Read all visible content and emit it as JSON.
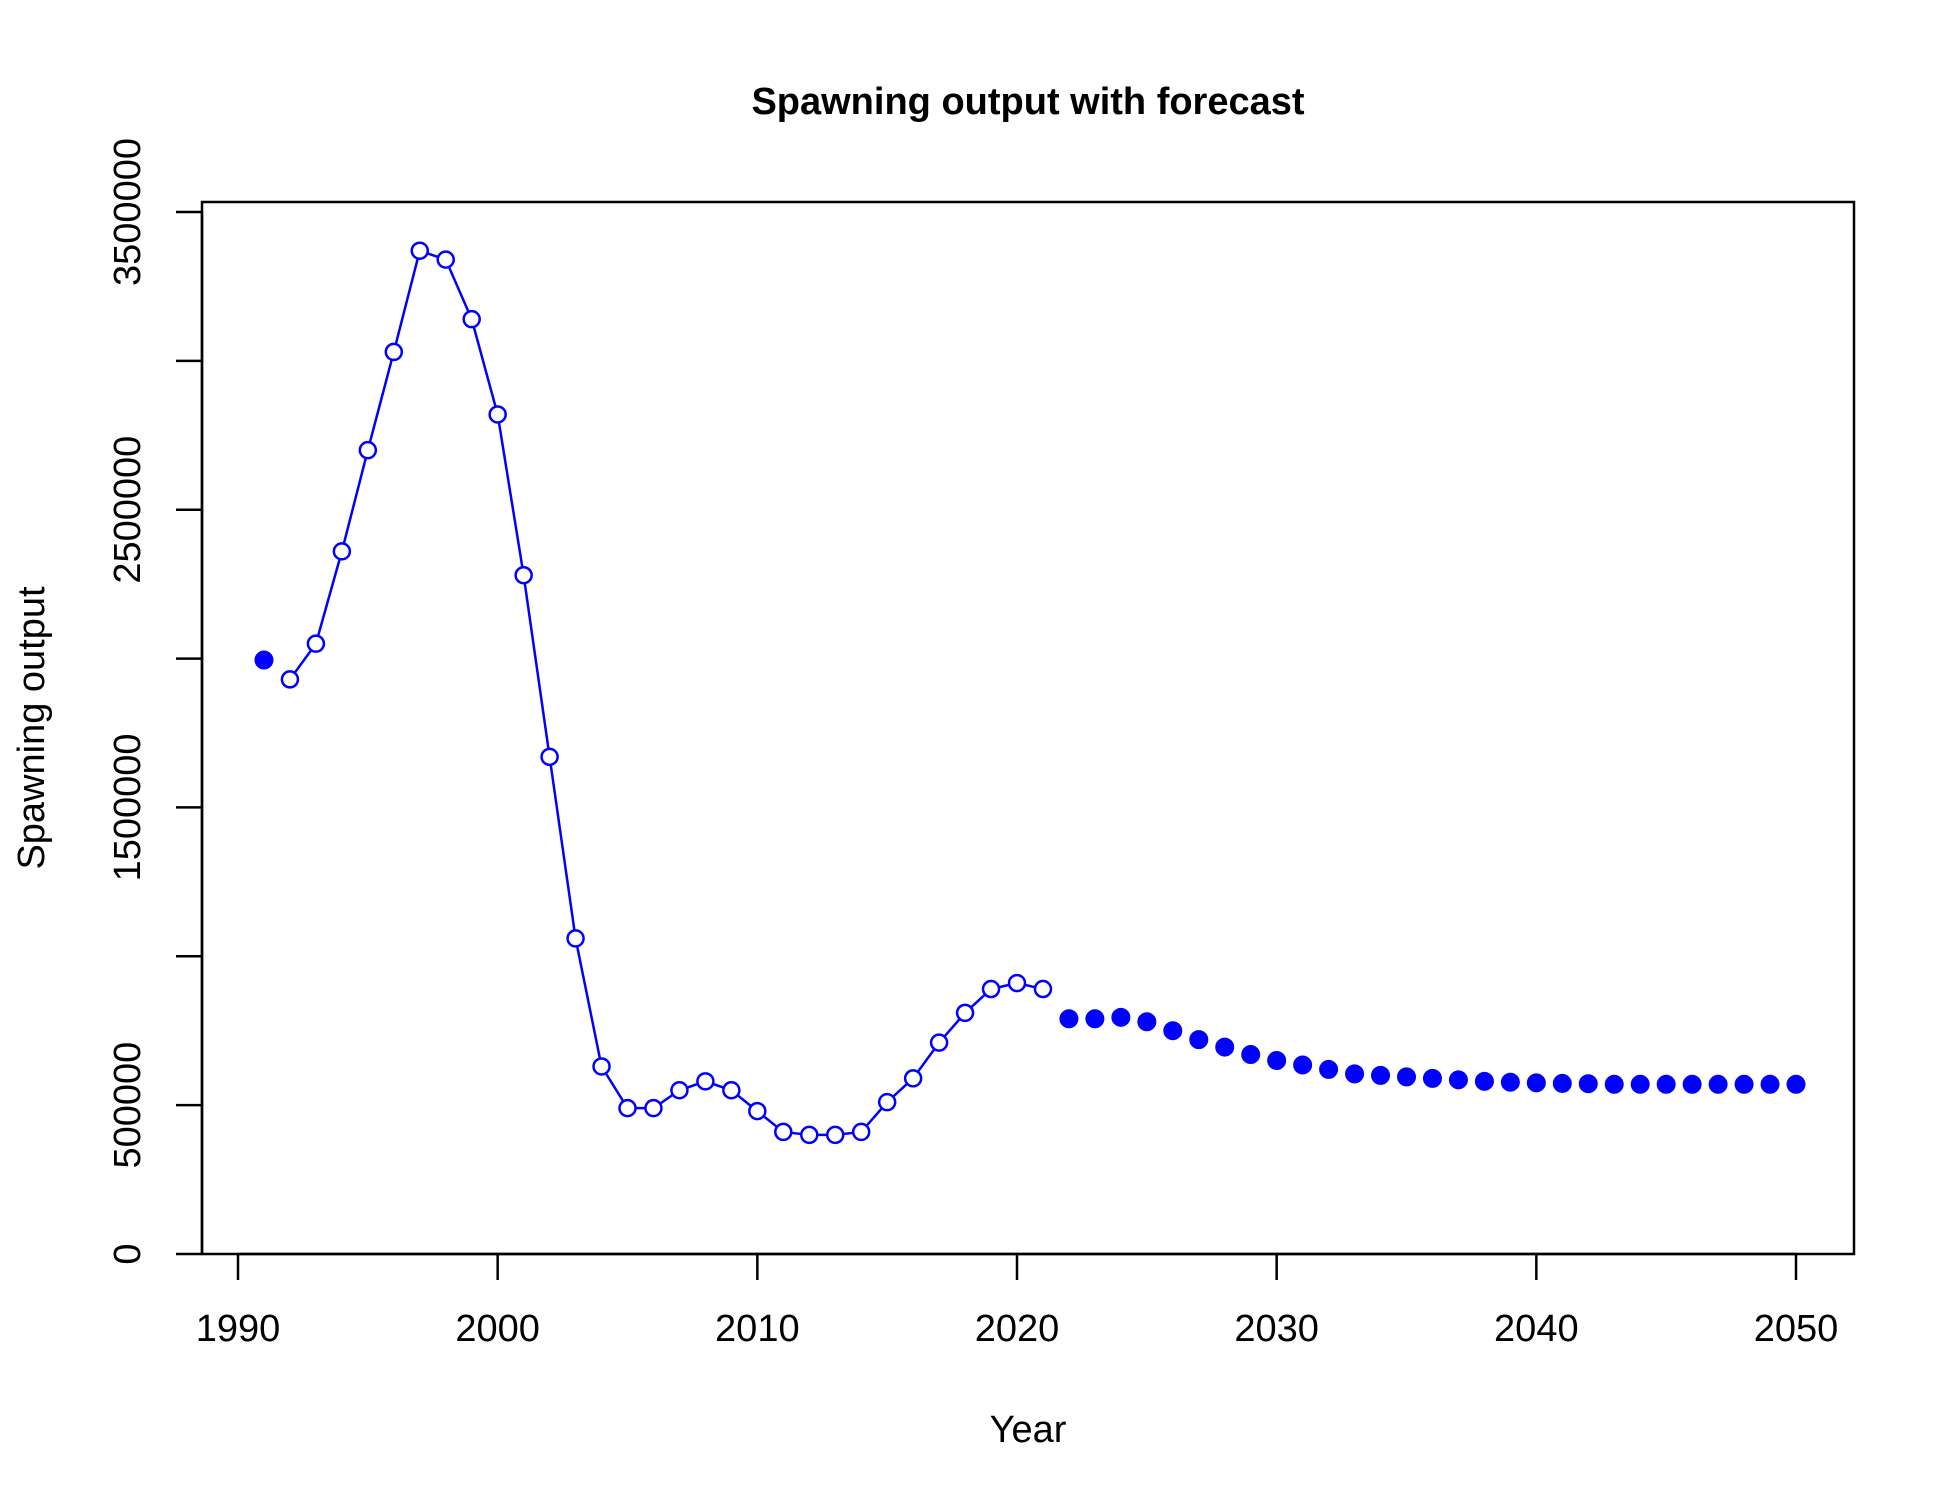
{
  "chart_data": {
    "type": "line",
    "title": "Spawning output with forecast",
    "xlabel": "Year",
    "ylabel": "Spawning output",
    "xlim": [
      1990,
      2050
    ],
    "ylim": [
      0,
      3500000
    ],
    "x_ticks": [
      1990,
      2000,
      2010,
      2020,
      2030,
      2040,
      2050
    ],
    "x_tick_labels": [
      "1990",
      "2000",
      "2010",
      "2020",
      "2030",
      "2040",
      "2050"
    ],
    "y_ticks": [
      0,
      500000,
      1000000,
      1500000,
      2000000,
      2500000,
      3000000,
      3500000
    ],
    "y_tick_labels": [
      "0",
      "500000",
      "",
      "1500000",
      "",
      "2500000",
      "",
      "3500000"
    ],
    "grid": false,
    "colors": {
      "series": "#0000ff",
      "axes": "#000000"
    },
    "series": [
      {
        "style": "open-circle-line",
        "x": [
          1992,
          1993,
          1994,
          1995,
          1996,
          1997,
          1998,
          1999,
          2000,
          2001,
          2002,
          2003,
          2004,
          2005,
          2006,
          2007,
          2008,
          2009,
          2010,
          2011,
          2012,
          2013,
          2014,
          2015,
          2016,
          2017,
          2018,
          2019,
          2020,
          2021
        ],
        "y": [
          1930000,
          2050000,
          2360000,
          2700000,
          3030000,
          3370000,
          3340000,
          3140000,
          2820000,
          2280000,
          1670000,
          1060000,
          630000,
          490000,
          490000,
          550000,
          580000,
          550000,
          480000,
          410000,
          400000,
          400000,
          410000,
          510000,
          590000,
          710000,
          810000,
          890000,
          910000,
          890000
        ]
      },
      {
        "style": "filled-circle",
        "x": [
          1991
        ],
        "y": [
          1995000
        ]
      },
      {
        "style": "filled-circle",
        "x": [
          2022,
          2023,
          2024,
          2025,
          2026,
          2027,
          2028,
          2029,
          2030,
          2031,
          2032,
          2033,
          2034,
          2035,
          2036,
          2037,
          2038,
          2039,
          2040,
          2041,
          2042,
          2043,
          2044,
          2045,
          2046,
          2047,
          2048,
          2049,
          2050
        ],
        "y": [
          790000,
          790000,
          795000,
          780000,
          750000,
          720000,
          695000,
          670000,
          650000,
          635000,
          620000,
          605000,
          600000,
          595000,
          590000,
          585000,
          580000,
          577000,
          575000,
          573000,
          572000,
          570000,
          570000,
          570000,
          570000,
          570000,
          570000,
          570000,
          570000
        ]
      }
    ]
  }
}
